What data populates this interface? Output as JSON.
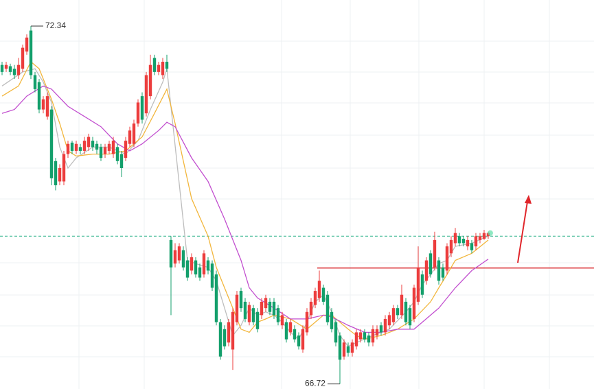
{
  "chart_data": {
    "type": "candlestick",
    "xlim": [
      -0.5,
      143.67
    ],
    "ylim": [
      66.64,
      72.75
    ],
    "up_color": "#ec3d3d",
    "down_color": "#139f6b",
    "open": [
      71.73,
      71.67,
      71.71,
      71.67,
      71.57,
      71.67,
      71.94,
      72.27,
      71.57,
      71.46,
      71.03,
      70.92,
      71.03,
      70.22,
      69.9,
      69.9,
      70.33,
      70.51,
      70.38,
      70.44,
      70.38,
      70.44,
      70.54,
      70.49,
      70.44,
      70.33,
      70.38,
      70.33,
      70.44,
      70.33,
      70.27,
      70.49,
      70.49,
      70.81,
      71.24,
      70.97,
      71.24,
      71.84,
      71.62,
      71.57,
      71.78,
      68.98,
      68.61,
      68.66,
      68.82,
      68.66,
      68.5,
      68.66,
      68.55,
      68.44,
      68.66,
      68.61,
      68.44,
      67.69,
      67.58,
      67.37,
      67.26,
      67.69,
      68.18,
      68.01,
      67.69,
      67.91,
      67.85,
      67.8,
      67.91,
      68.01,
      68.01,
      67.91,
      67.64,
      67.69,
      67.53,
      67.58,
      67.48,
      67.26,
      67.53,
      67.8,
      67.96,
      68.07,
      68.23,
      68.12,
      67.85,
      67.69,
      67.48,
      67.15,
      67.31,
      67.21,
      67.31,
      67.42,
      67.53,
      67.48,
      67.37,
      67.48,
      67.64,
      67.53,
      67.64,
      67.69,
      67.91,
      67.8,
      68.01,
      67.91,
      67.74,
      68.01,
      68.44,
      68.34,
      68.77,
      68.55,
      68.66,
      68.55,
      68.5,
      68.77,
      68.93,
      69.04,
      69.0,
      68.88,
      68.93,
      68.88,
      68.98,
      69.0,
      69.04
    ],
    "high": [
      71.78,
      71.78,
      71.75,
      71.73,
      71.84,
      72.05,
      72.21,
      72.34,
      71.62,
      71.51,
      71.24,
      71.3,
      71.08,
      70.27,
      70.17,
      70.38,
      70.54,
      70.54,
      70.54,
      70.49,
      70.6,
      70.65,
      70.6,
      70.54,
      70.49,
      70.49,
      70.54,
      70.6,
      70.49,
      70.38,
      70.6,
      70.76,
      70.87,
      71.19,
      71.3,
      71.62,
      71.89,
      71.89,
      71.78,
      71.84,
      71.89,
      69.04,
      68.93,
      68.93,
      68.88,
      68.71,
      68.77,
      68.71,
      68.61,
      68.82,
      68.71,
      68.66,
      68.5,
      67.74,
      67.64,
      67.74,
      67.91,
      68.18,
      68.23,
      68.07,
      68.01,
      67.96,
      67.91,
      68.07,
      68.12,
      68.07,
      68.07,
      67.96,
      67.85,
      67.74,
      67.74,
      67.64,
      67.53,
      67.64,
      67.91,
      68.07,
      68.23,
      68.5,
      68.28,
      68.18,
      67.91,
      67.74,
      67.53,
      67.42,
      67.37,
      67.42,
      67.58,
      67.58,
      67.58,
      67.53,
      67.64,
      67.64,
      67.69,
      67.8,
      67.85,
      67.96,
      67.96,
      68.28,
      68.07,
      67.96,
      68.28,
      68.88,
      68.5,
      68.71,
      68.82,
      69.11,
      68.71,
      68.61,
      68.93,
      69.04,
      69.17,
      69.09,
      69.04,
      69.04,
      68.98,
      69.09,
      69.09,
      69.14,
      69.11
    ],
    "low": [
      71.57,
      71.62,
      71.57,
      71.51,
      71.51,
      71.62,
      71.89,
      71.51,
      71.3,
      70.97,
      70.97,
      70.87,
      69.84,
      69.76,
      69.84,
      69.84,
      70.27,
      70.33,
      70.33,
      70.33,
      70.33,
      70.38,
      70.38,
      70.33,
      70.22,
      70.27,
      70.33,
      70.27,
      70.17,
      69.97,
      70.22,
      70.44,
      70.44,
      70.76,
      70.81,
      70.92,
      71.19,
      71.57,
      71.57,
      71.51,
      71.62,
      67.8,
      68.55,
      68.61,
      68.5,
      68.34,
      68.44,
      68.39,
      68.34,
      68.39,
      68.44,
      68.18,
      67.64,
      67.1,
      67.26,
      67.31,
      66.94,
      67.64,
      67.85,
      67.69,
      67.64,
      67.64,
      67.53,
      67.74,
      67.85,
      67.8,
      67.74,
      67.64,
      67.58,
      67.37,
      67.48,
      67.37,
      67.26,
      67.21,
      67.48,
      67.74,
      67.91,
      68.01,
      67.96,
      67.64,
      67.53,
      67.31,
      66.72,
      67.1,
      67.15,
      67.15,
      67.26,
      67.37,
      67.37,
      67.31,
      67.31,
      67.42,
      67.48,
      67.48,
      67.58,
      67.64,
      67.74,
      67.74,
      67.64,
      67.58,
      67.69,
      67.96,
      68.07,
      68.28,
      68.39,
      68.5,
      68.28,
      68.34,
      68.44,
      68.71,
      68.88,
      68.88,
      68.88,
      68.82,
      68.77,
      68.82,
      68.93,
      68.98,
      69.0
    ],
    "close": [
      71.62,
      71.73,
      71.62,
      71.57,
      71.73,
      72.0,
      72.16,
      71.57,
      71.35,
      71.03,
      71.19,
      71.24,
      69.95,
      69.84,
      70.11,
      70.33,
      70.49,
      70.38,
      70.49,
      70.38,
      70.54,
      70.6,
      70.44,
      70.4,
      70.27,
      70.44,
      70.49,
      70.54,
      70.22,
      70.11,
      70.54,
      70.7,
      70.81,
      71.14,
      70.87,
      71.57,
      71.73,
      71.62,
      71.73,
      71.78,
      71.67,
      68.55,
      68.82,
      68.88,
      68.55,
      68.39,
      68.71,
      68.44,
      68.39,
      68.77,
      68.5,
      68.23,
      67.69,
      67.15,
      67.31,
      67.69,
      67.85,
      68.12,
      67.91,
      67.74,
      67.96,
      67.69,
      67.58,
      68.01,
      68.07,
      67.85,
      67.8,
      67.69,
      67.8,
      67.42,
      67.69,
      67.42,
      67.31,
      67.58,
      67.85,
      68.01,
      68.18,
      68.34,
      68.01,
      67.69,
      67.58,
      67.37,
      67.1,
      67.37,
      67.21,
      67.37,
      67.53,
      67.53,
      67.42,
      67.37,
      67.58,
      67.58,
      67.53,
      67.74,
      67.8,
      67.91,
      67.8,
      68.12,
      67.69,
      67.64,
      68.23,
      68.55,
      68.12,
      68.66,
      68.44,
      68.98,
      68.34,
      68.39,
      68.88,
      68.98,
      69.09,
      68.93,
      68.93,
      68.98,
      68.82,
      69.04,
      69.04,
      69.09,
      69.09
    ],
    "series": [
      {
        "color": "#bdbdbd",
        "x": [
          0,
          5,
          8,
          10,
          12,
          14,
          16,
          18,
          22,
          26,
          30,
          33,
          36,
          39,
          40,
          45,
          47,
          50,
          52,
          54,
          56,
          58,
          60,
          62,
          64,
          66,
          68,
          70,
          72,
          74,
          76,
          78,
          80,
          82,
          84,
          86,
          90,
          94,
          98,
          100,
          102,
          104,
          106,
          108,
          110,
          114,
          118
        ],
        "values": [
          71.4,
          71.62,
          71.67,
          71.46,
          71.14,
          70.44,
          70.11,
          70.27,
          70.44,
          70.44,
          70.33,
          70.54,
          71.03,
          71.46,
          71.67,
          68.66,
          68.61,
          68.55,
          68.34,
          67.91,
          67.48,
          67.64,
          67.91,
          67.8,
          67.85,
          67.8,
          67.69,
          67.53,
          67.42,
          67.69,
          68.01,
          68.12,
          67.85,
          67.48,
          67.31,
          67.37,
          67.48,
          67.58,
          67.85,
          68.01,
          68.28,
          68.44,
          68.61,
          68.66,
          68.88,
          68.93,
          69.04
        ]
      },
      {
        "color": "#f2b63c",
        "x": [
          0,
          4,
          7,
          9,
          12,
          14,
          16,
          18,
          22,
          26,
          30,
          34,
          37,
          40,
          42,
          46,
          50,
          52,
          54,
          56,
          58,
          60,
          62,
          64,
          66,
          70,
          74,
          76,
          78,
          80,
          82,
          84,
          86,
          88,
          92,
          96,
          100,
          104,
          106,
          108,
          110,
          114,
          118
        ],
        "values": [
          71.24,
          71.4,
          71.78,
          71.67,
          71.19,
          70.81,
          70.38,
          70.3,
          70.33,
          70.33,
          70.38,
          70.6,
          70.97,
          71.35,
          70.81,
          69.63,
          69.04,
          68.55,
          68.23,
          67.91,
          67.58,
          67.53,
          67.69,
          67.74,
          67.8,
          67.74,
          67.58,
          67.69,
          67.8,
          67.8,
          67.69,
          67.58,
          67.48,
          67.42,
          67.48,
          67.58,
          67.74,
          68.01,
          68.23,
          68.44,
          68.66,
          68.77,
          68.98
        ]
      },
      {
        "color": "#c24fcf",
        "x": [
          0,
          3,
          6,
          10,
          12,
          16,
          20,
          24,
          28,
          31,
          34,
          38,
          40,
          42,
          46,
          50,
          54,
          58,
          60,
          62,
          66,
          70,
          74,
          78,
          80,
          84,
          88,
          92,
          96,
          100,
          102,
          106,
          110,
          114,
          118
        ],
        "values": [
          70.97,
          71.03,
          71.24,
          71.4,
          71.35,
          71.08,
          70.92,
          70.76,
          70.49,
          70.38,
          70.49,
          70.7,
          70.83,
          70.76,
          70.27,
          69.9,
          69.31,
          68.66,
          68.23,
          68.07,
          67.91,
          67.74,
          67.74,
          67.8,
          67.77,
          67.64,
          67.53,
          67.53,
          67.58,
          67.58,
          67.69,
          67.91,
          68.23,
          68.5,
          68.68
        ]
      }
    ],
    "high_marker": {
      "index": 7,
      "value": 72.34
    },
    "low_marker": {
      "index": 82,
      "value": 66.72
    },
    "price_line": {
      "value": 69.04,
      "color": "#2fb38a"
    },
    "resistance_line": {
      "value": 68.54,
      "start_index": 76.5,
      "color": "#d9252a"
    }
  }
}
